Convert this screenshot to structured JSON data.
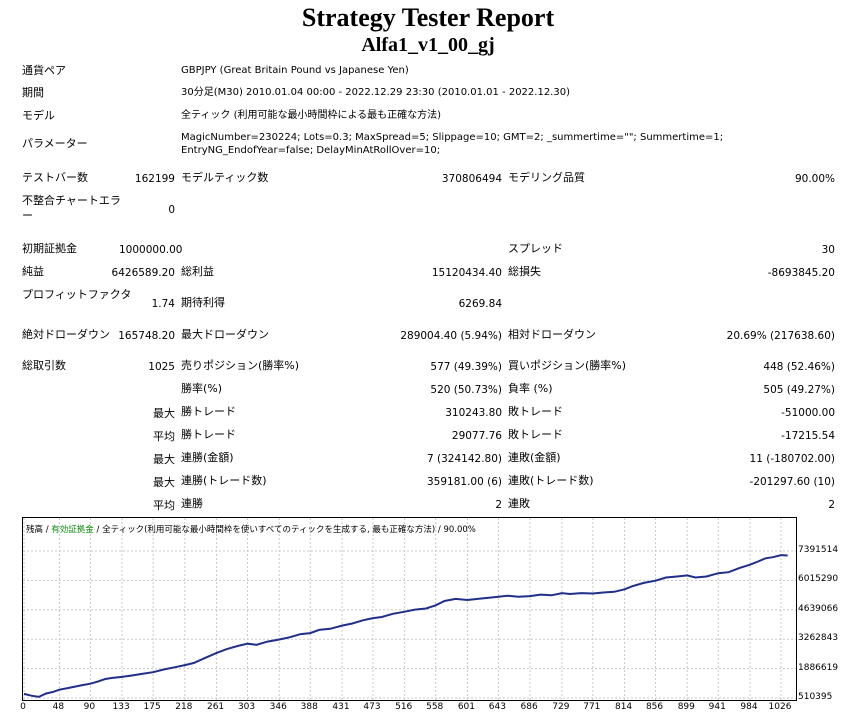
{
  "report": {
    "title": "Strategy Tester Report",
    "subtitle": "Alfa1_v1_00_gj"
  },
  "info": [
    {
      "label": "通貨ペア",
      "value": "GBPJPY (Great Britain Pound vs Japanese Yen)"
    },
    {
      "label": "期間",
      "value": "30分足(M30) 2010.01.04 00:00 - 2022.12.29 23:30 (2010.01.01 - 2022.12.30)"
    },
    {
      "label": "モデル",
      "value": "全ティック (利用可能な最小時間枠による最も正確な方法)"
    },
    {
      "label": "パラメーター",
      "value": "MagicNumber=230224; Lots=0.3; MaxSpread=5; Slippage=10; GMT=2; _summertime=\"\"; Summertime=1; EntryNG_EndofYear=false; DelayMinAtRollOver=10;"
    }
  ],
  "stats": {
    "bars_label": "テストバー数",
    "bars": "162199",
    "ticks_label": "モデルティック数",
    "ticks": "370806494",
    "quality_label": "モデリング品質",
    "quality": "90.00%",
    "mismatch_label": "不整合チャートエラー",
    "mismatch": "0",
    "deposit_label": "初期証拠金",
    "deposit": "1000000.00",
    "spread_label": "スプレッド",
    "spread": "30",
    "net_label": "純益",
    "net": "6426589.20",
    "gross_profit_label": "総利益",
    "gross_profit": "15120434.40",
    "gross_loss_label": "総損失",
    "gross_loss": "-8693845.20",
    "pf_label": "プロフィットファクタ",
    "pf": "1.74",
    "payoff_label": "期待利得",
    "payoff": "6269.84",
    "abs_dd_label": "絶対ドローダウン",
    "abs_dd": "165748.20",
    "max_dd_label": "最大ドローダウン",
    "max_dd": "289004.40 (5.94%)",
    "rel_dd_label": "相対ドローダウン",
    "rel_dd": "20.69% (217638.60)",
    "total_trades_label": "総取引数",
    "total_trades": "1025",
    "short_label": "売りポジション(勝率%)",
    "short": "577 (49.39%)",
    "long_label": "買いポジション(勝率%)",
    "long": "448 (52.46%)",
    "win_rate_label": "勝率(%)",
    "win_rate": "520 (50.73%)",
    "loss_rate_label": "負率 (%)",
    "loss_rate": "505 (49.27%)",
    "sub_max": "最大",
    "sub_avg": "平均",
    "largest_win_label": "勝トレード",
    "largest_win": "310243.80",
    "largest_loss_label": "敗トレード",
    "largest_loss": "-51000.00",
    "avg_win_label": "勝トレード",
    "avg_win": "29077.76",
    "avg_loss_label": "敗トレード",
    "avg_loss": "-17215.54",
    "max_cons_wins_amt_label": "連勝(金額)",
    "max_cons_wins_amt": "7 (324142.80)",
    "max_cons_losses_amt_label": "連敗(金額)",
    "max_cons_losses_amt": "11 (-180702.00)",
    "max_cons_profit_label": "連勝(トレード数)",
    "max_cons_profit": "359181.00 (6)",
    "max_cons_loss_label": "連敗(トレード数)",
    "max_cons_loss": "-201297.60 (10)",
    "avg_cons_wins_label": "連勝",
    "avg_cons_wins": "2",
    "avg_cons_losses_label": "連敗",
    "avg_cons_losses": "2"
  },
  "chart_data": {
    "type": "line",
    "legend_balance": "残高",
    "legend_sep1": " / ",
    "legend_equity": "有効証拠金",
    "legend_sep2": " / ",
    "legend_rest": "全ティック(利用可能な最小時間枠を使いすべてのティックを生成する, 最も正確な方法) / 90.00%",
    "line_color": "#1f2f8a",
    "equity_color": "#0a8a0a",
    "grid": true,
    "xlim": [
      0,
      1045
    ],
    "ylim": [
      510395,
      8000000
    ],
    "y_ticks": [
      "7391514",
      "6015290",
      "4639066",
      "3262843",
      "1886619",
      "510395"
    ],
    "y_tick_values": [
      7391514,
      6015290,
      4639066,
      3262843,
      1886619,
      510395
    ],
    "x_ticks": [
      "0",
      "48",
      "90",
      "133",
      "175",
      "218",
      "261",
      "303",
      "346",
      "388",
      "431",
      "473",
      "516",
      "558",
      "601",
      "643",
      "686",
      "729",
      "771",
      "814",
      "856",
      "899",
      "941",
      "984",
      "1026"
    ],
    "x_tick_values": [
      0,
      48,
      90,
      133,
      175,
      218,
      261,
      303,
      346,
      388,
      431,
      473,
      516,
      558,
      601,
      643,
      686,
      729,
      771,
      814,
      856,
      899,
      941,
      984,
      1026
    ],
    "x": [
      0,
      10,
      20,
      30,
      40,
      48,
      60,
      70,
      80,
      90,
      100,
      110,
      120,
      133,
      145,
      160,
      175,
      190,
      205,
      218,
      230,
      245,
      261,
      275,
      290,
      303,
      315,
      330,
      346,
      360,
      375,
      388,
      400,
      415,
      431,
      445,
      460,
      473,
      485,
      500,
      516,
      530,
      545,
      558,
      570,
      585,
      601,
      615,
      630,
      643,
      655,
      670,
      686,
      700,
      715,
      729,
      740,
      755,
      771,
      785,
      800,
      814,
      825,
      840,
      856,
      870,
      885,
      899,
      910,
      925,
      941,
      955,
      970,
      984,
      995,
      1005,
      1015,
      1026,
      1035
    ],
    "y": [
      700000,
      620000,
      560000,
      720000,
      800000,
      900000,
      980000,
      1050000,
      1120000,
      1180000,
      1280000,
      1400000,
      1450000,
      1500000,
      1560000,
      1640000,
      1720000,
      1850000,
      1950000,
      2050000,
      2150000,
      2380000,
      2620000,
      2800000,
      2950000,
      3050000,
      3000000,
      3150000,
      3250000,
      3350000,
      3500000,
      3550000,
      3700000,
      3750000,
      3900000,
      4000000,
      4150000,
      4250000,
      4300000,
      4450000,
      4550000,
      4650000,
      4700000,
      4850000,
      5050000,
      5150000,
      5100000,
      5150000,
      5200000,
      5250000,
      5300000,
      5250000,
      5280000,
      5350000,
      5320000,
      5420000,
      5380000,
      5420000,
      5400000,
      5450000,
      5480000,
      5600000,
      5750000,
      5900000,
      6000000,
      6150000,
      6200000,
      6250000,
      6150000,
      6200000,
      6350000,
      6400000,
      6600000,
      6750000,
      6900000,
      7050000,
      7100000,
      7200000,
      7180000
    ]
  }
}
